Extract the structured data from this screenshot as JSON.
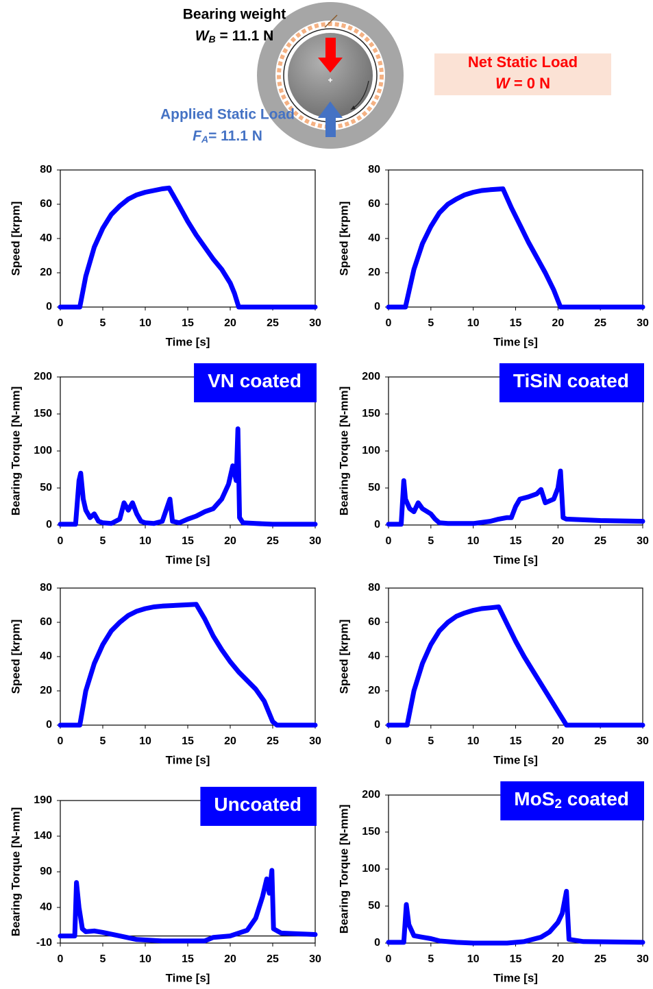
{
  "diagram": {
    "bearing_weight": {
      "label": "Bearing weight",
      "symbol": "W",
      "subscript": "B",
      "equation": " = 11.1 N"
    },
    "applied_load": {
      "label": "Applied Static Load",
      "symbol": "F",
      "subscript": "A",
      "equation": "= 11.1 N"
    },
    "net_load": {
      "label": "Net Static Load",
      "symbol": "W",
      "equation": " = 0 N"
    }
  },
  "chart_data": [
    {
      "type": "line",
      "x_label": "Time [s]",
      "y_label": "Speed [krpm]",
      "color": "#0000ff",
      "x": [
        0,
        2.3,
        3,
        4,
        5,
        6,
        7,
        8,
        9,
        10,
        11,
        12,
        12.8,
        14,
        15,
        16,
        17,
        18,
        19,
        20,
        20.5,
        21,
        25,
        30
      ],
      "values": [
        0,
        0,
        18,
        35,
        46,
        54,
        59,
        63,
        65.5,
        67,
        68,
        69,
        69.5,
        59,
        50,
        42,
        35,
        28,
        22,
        14,
        8,
        0,
        0,
        0
      ],
      "xlim": [
        0,
        30
      ],
      "ylim": [
        0,
        80
      ],
      "xticks": [
        0,
        5,
        10,
        15,
        20,
        25,
        30
      ],
      "yticks": [
        0,
        20,
        40,
        60,
        80
      ]
    },
    {
      "type": "line",
      "x_label": "Time [s]",
      "y_label": "Speed [krpm]",
      "color": "#0000ff",
      "x": [
        0,
        2,
        3,
        4,
        5,
        6,
        7,
        8,
        9,
        10,
        11,
        12,
        13.5,
        14.5,
        15.5,
        16.5,
        17.5,
        18.5,
        19.5,
        20.3,
        30
      ],
      "values": [
        0,
        0,
        22,
        37,
        47,
        55,
        60,
        63,
        65.5,
        67,
        68,
        68.5,
        69,
        58,
        48,
        38,
        29,
        20,
        10,
        0,
        0
      ],
      "xlim": [
        0,
        30
      ],
      "ylim": [
        0,
        80
      ],
      "xticks": [
        0,
        5,
        10,
        15,
        20,
        25,
        30
      ],
      "yticks": [
        0,
        20,
        40,
        60,
        80
      ]
    },
    {
      "type": "line",
      "label": "VN coated",
      "x_label": "Time [s]",
      "y_label": "Bearing Torque [N-mm]",
      "color": "#0000ff",
      "x": [
        0,
        1.8,
        2.2,
        2.4,
        2.7,
        3,
        3.5,
        4,
        4.5,
        5,
        6,
        7,
        7.5,
        8,
        8.5,
        9,
        9.5,
        10,
        11,
        12,
        12.9,
        13.2,
        14,
        15,
        16,
        17,
        18,
        19,
        19.8,
        20.3,
        20.7,
        20.9,
        21.1,
        21.5,
        23,
        25,
        30
      ],
      "values": [
        1,
        1,
        60,
        70,
        35,
        20,
        10,
        15,
        5,
        3,
        2,
        8,
        30,
        20,
        30,
        15,
        5,
        3,
        2,
        5,
        35,
        5,
        3,
        8,
        12,
        18,
        22,
        35,
        55,
        80,
        60,
        130,
        10,
        3,
        2,
        1,
        1
      ],
      "xlim": [
        0,
        30
      ],
      "ylim": [
        0,
        200
      ],
      "xticks": [
        0,
        5,
        10,
        15,
        20,
        25,
        30
      ],
      "yticks": [
        0,
        50,
        100,
        150,
        200
      ]
    },
    {
      "type": "line",
      "label": "TiSiN coated",
      "x_label": "Time [s]",
      "y_label": "Bearing Torque [N-mm]",
      "color": "#0000ff",
      "x": [
        0,
        1.5,
        1.8,
        2,
        2.5,
        3,
        3.5,
        4,
        5,
        5.5,
        6,
        7,
        10,
        12,
        13,
        14,
        14.5,
        15,
        15.5,
        16.5,
        17.5,
        18,
        18.5,
        19.5,
        20,
        20.3,
        20.6,
        21,
        25,
        30
      ],
      "values": [
        1,
        1,
        60,
        35,
        22,
        18,
        30,
        22,
        15,
        8,
        3,
        2,
        2,
        5,
        8,
        10,
        10,
        25,
        35,
        38,
        42,
        48,
        30,
        35,
        50,
        73,
        10,
        8,
        6,
        5
      ],
      "xlim": [
        0,
        30
      ],
      "ylim": [
        0,
        200
      ],
      "xticks": [
        0,
        5,
        10,
        15,
        20,
        25,
        30
      ],
      "yticks": [
        0,
        50,
        100,
        150,
        200
      ]
    },
    {
      "type": "line",
      "x_label": "Time [s]",
      "y_label": "Speed [krpm]",
      "color": "#0000ff",
      "x": [
        0,
        2.3,
        3,
        4,
        5,
        6,
        7,
        8,
        9,
        10,
        11,
        12,
        14,
        16,
        17,
        18,
        19,
        20,
        21,
        22,
        23,
        24,
        25,
        25.5,
        30
      ],
      "values": [
        0,
        0,
        20,
        36,
        47,
        55,
        60,
        64,
        66.5,
        68,
        69,
        69.5,
        70,
        70.5,
        62,
        52,
        44,
        37,
        31,
        26,
        21,
        14,
        2,
        0,
        0
      ],
      "xlim": [
        0,
        30
      ],
      "ylim": [
        0,
        80
      ],
      "xticks": [
        0,
        5,
        10,
        15,
        20,
        25,
        30
      ],
      "yticks": [
        0,
        20,
        40,
        60,
        80
      ]
    },
    {
      "type": "line",
      "x_label": "Time [s]",
      "y_label": "Speed [krpm]",
      "color": "#0000ff",
      "x": [
        0,
        2.2,
        3,
        4,
        5,
        6,
        7,
        8,
        9,
        10,
        11,
        12,
        13,
        14,
        15,
        16,
        17,
        18,
        19,
        20,
        21,
        30
      ],
      "values": [
        0,
        0,
        20,
        36,
        47,
        55,
        60,
        63.5,
        65.5,
        67,
        68,
        68.5,
        69,
        59,
        49,
        40,
        32,
        24,
        16,
        8,
        0,
        0
      ],
      "xlim": [
        0,
        30
      ],
      "ylim": [
        0,
        80
      ],
      "xticks": [
        0,
        5,
        10,
        15,
        20,
        25,
        30
      ],
      "yticks": [
        0,
        20,
        40,
        60,
        80
      ]
    },
    {
      "type": "line",
      "label": "Uncoated",
      "x_label": "Time [s]",
      "y_label": "Bearing Torque [N-mm]",
      "color": "#0000ff",
      "x": [
        0,
        1.7,
        1.9,
        2.2,
        2.6,
        3,
        4,
        5,
        7,
        9,
        12,
        15,
        17,
        18,
        20,
        22,
        23,
        23.8,
        24.3,
        24.6,
        24.9,
        25.1,
        26,
        28,
        30
      ],
      "values": [
        0,
        0,
        75,
        40,
        10,
        6,
        7,
        5,
        0,
        -5,
        -7,
        -7,
        -7,
        -2,
        0,
        8,
        25,
        55,
        80,
        60,
        92,
        10,
        4,
        3,
        2
      ],
      "xlim": [
        0,
        30
      ],
      "ylim": [
        -10,
        190
      ],
      "xticks": [
        0,
        5,
        10,
        15,
        20,
        25,
        30
      ],
      "yticks": [
        -10,
        40,
        90,
        140,
        190
      ]
    },
    {
      "type": "line",
      "label": "MoS",
      "label_subscript": "2",
      "label_suffix": " coated",
      "x_label": "Time [s]",
      "y_label": "Bearing Torque [N-mm]",
      "color": "#0000ff",
      "x": [
        0,
        1.8,
        2.1,
        2.4,
        3,
        4,
        5,
        6,
        8,
        10,
        14,
        16,
        18,
        19,
        20,
        20.5,
        21,
        21.3,
        23,
        30
      ],
      "values": [
        1,
        1,
        52,
        25,
        10,
        8,
        6,
        3,
        1,
        0,
        0,
        2,
        8,
        15,
        28,
        40,
        70,
        5,
        2,
        1
      ],
      "xlim": [
        0,
        30
      ],
      "ylim": [
        0,
        200
      ],
      "xticks": [
        0,
        5,
        10,
        15,
        20,
        25,
        30
      ],
      "yticks": [
        0,
        50,
        100,
        150,
        200
      ]
    }
  ]
}
